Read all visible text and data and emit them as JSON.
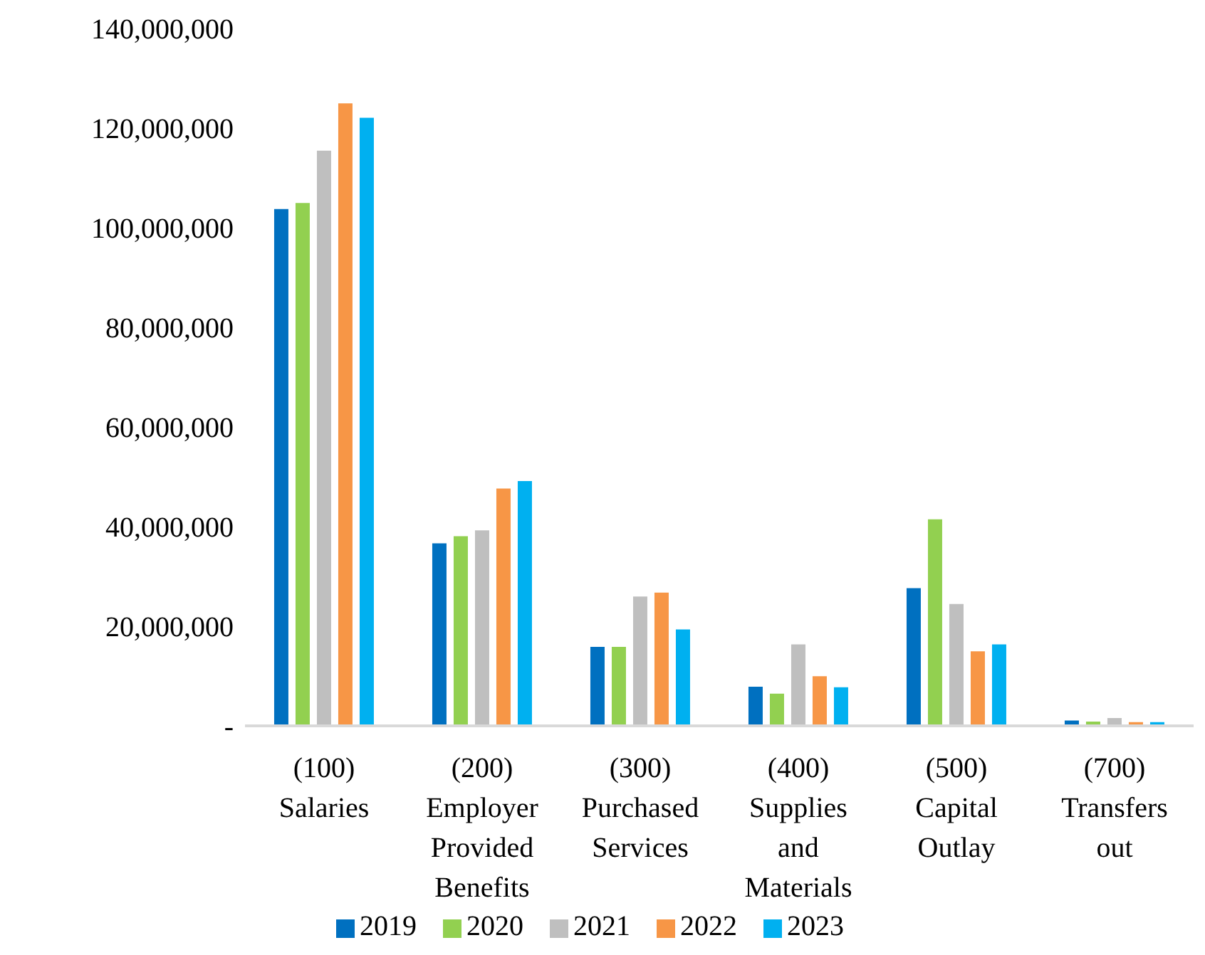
{
  "chart_data": {
    "type": "bar",
    "categories": [
      "(100) Salaries",
      "(200) Employer Provided Benefits",
      "(300) Purchased Services",
      "(400) Supplies and Materials",
      "(500) Capital Outlay",
      "(700) Transfers out"
    ],
    "series": [
      {
        "name": "2019",
        "color": "#0070c0",
        "values": [
          103900000,
          36800000,
          16000000,
          8000000,
          27800000,
          1200000
        ]
      },
      {
        "name": "2020",
        "color": "#92d050",
        "values": [
          105100000,
          38200000,
          16000000,
          6600000,
          41600000,
          1000000
        ]
      },
      {
        "name": "2021",
        "color": "#bfbfbf",
        "values": [
          115600000,
          39400000,
          26100000,
          16500000,
          24600000,
          1700000
        ]
      },
      {
        "name": "2022",
        "color": "#f79646",
        "values": [
          125100000,
          47800000,
          26900000,
          10100000,
          15100000,
          900000
        ]
      },
      {
        "name": "2023",
        "color": "#00b0f0",
        "values": [
          122200000,
          49300000,
          19500000,
          7900000,
          16500000,
          900000
        ]
      }
    ],
    "ylim": [
      0,
      140000000
    ],
    "yticks": [
      {
        "value": 0,
        "label": "-"
      },
      {
        "value": 20000000,
        "label": "20,000,000"
      },
      {
        "value": 40000000,
        "label": "40,000,000"
      },
      {
        "value": 60000000,
        "label": "60,000,000"
      },
      {
        "value": 80000000,
        "label": "80,000,000"
      },
      {
        "value": 100000000,
        "label": "100,000,000"
      },
      {
        "value": 120000000,
        "label": "120,000,000"
      },
      {
        "value": 140000000,
        "label": "140,000,000"
      }
    ],
    "grid": false,
    "legend": "bottom"
  }
}
